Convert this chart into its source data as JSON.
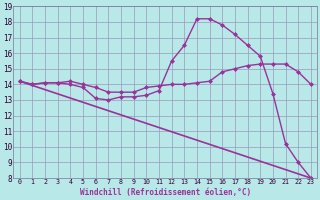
{
  "background_color": "#b8e8e8",
  "grid_color": "#9999bb",
  "line_color": "#993399",
  "xlim": [
    -0.5,
    23.5
  ],
  "ylim": [
    8,
    19
  ],
  "xlabel": "Windchill (Refroidissement éolien,°C)",
  "xticks": [
    0,
    1,
    2,
    3,
    4,
    5,
    6,
    7,
    8,
    9,
    10,
    11,
    12,
    13,
    14,
    15,
    16,
    17,
    18,
    19,
    20,
    21,
    22,
    23
  ],
  "yticks": [
    8,
    9,
    10,
    11,
    12,
    13,
    14,
    15,
    16,
    17,
    18,
    19
  ],
  "series": [
    {
      "x": [
        0,
        23
      ],
      "y": [
        14.2,
        8.0
      ],
      "marker": "None",
      "markersize": 0,
      "linewidth": 1.2
    },
    {
      "x": [
        0,
        1,
        2,
        3,
        4,
        5,
        6,
        7,
        8,
        9,
        10,
        11,
        12,
        13,
        14,
        15,
        16,
        17,
        18,
        19,
        20,
        21,
        22,
        23
      ],
      "y": [
        14.2,
        14.0,
        14.1,
        14.1,
        14.2,
        14.0,
        13.8,
        13.5,
        13.5,
        13.5,
        13.8,
        13.9,
        14.0,
        14.0,
        14.1,
        14.2,
        14.8,
        15.0,
        15.2,
        15.3,
        15.3,
        15.3,
        14.8,
        14.0
      ],
      "marker": "D",
      "markersize": 2,
      "linewidth": 1.0
    },
    {
      "x": [
        0,
        1,
        2,
        3,
        4,
        5,
        6,
        7,
        8,
        9,
        10,
        11,
        12,
        13,
        14,
        15,
        16,
        17,
        18,
        19,
        20,
        21,
        22,
        23
      ],
      "y": [
        14.2,
        14.0,
        14.1,
        14.1,
        14.0,
        13.8,
        13.1,
        13.0,
        13.2,
        13.2,
        13.3,
        13.6,
        15.5,
        16.5,
        18.2,
        18.2,
        17.8,
        17.2,
        16.5,
        15.8,
        13.4,
        10.2,
        9.0,
        8.0
      ],
      "marker": "D",
      "markersize": 2,
      "linewidth": 1.0
    }
  ]
}
